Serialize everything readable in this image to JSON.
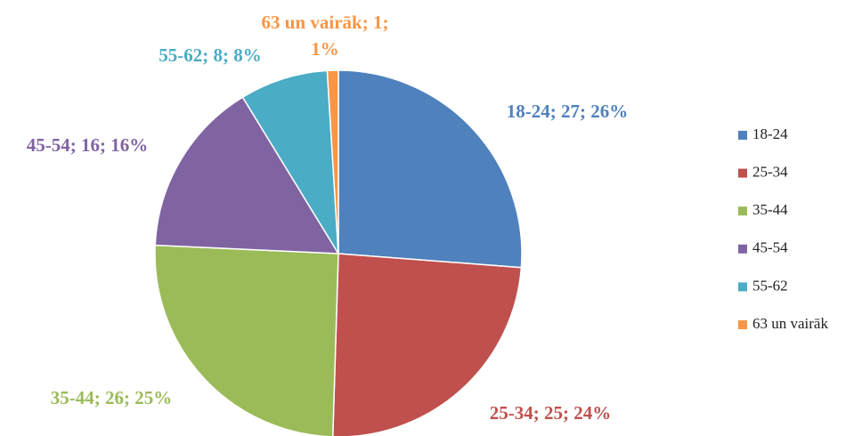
{
  "chart_data": {
    "type": "pie",
    "categories": [
      "18-24",
      "25-34",
      "35-44",
      "45-54",
      "55-62",
      "63 un vairāk"
    ],
    "values": [
      27,
      25,
      26,
      16,
      8,
      1
    ],
    "value_labels": [
      "18-24; 27; 26%",
      "25-34; 25; 24%",
      "35-44; 26; 25%",
      "45-54; 16; 16%",
      "55-62; 8; 8%",
      "63 un vairāk; 1; 1%"
    ],
    "colors": [
      "#4f81bd",
      "#c0504d",
      "#9bbb59",
      "#8064a2",
      "#4bacc6",
      "#f79646"
    ],
    "legend": "right"
  }
}
